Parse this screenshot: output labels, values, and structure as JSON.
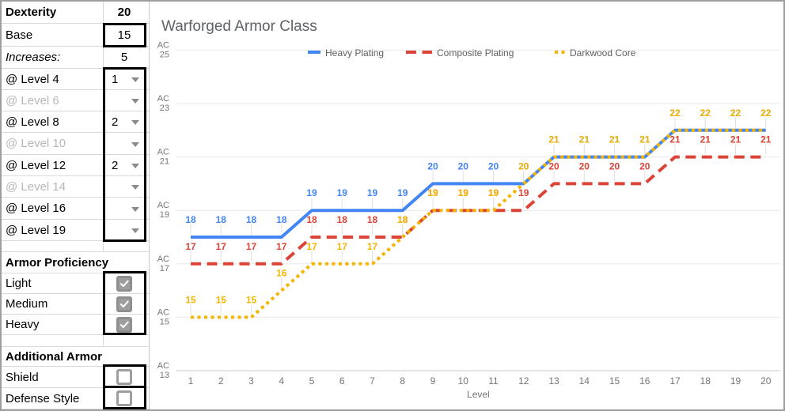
{
  "colors": {
    "series_blue": "#4285f4",
    "series_red": "#db4437",
    "series_yellow": "#f4b400",
    "title_text": "#5f6368",
    "axis_text": "#757575",
    "gridline": "#e8e8e8",
    "axis_baseline": "#c9c9c9",
    "checkbox_gray": "#9e9e9e",
    "muted_label": "#b7b7b7"
  },
  "icons": {
    "dropdown": "triangle-down-icon",
    "checked": "checkmark-icon"
  },
  "sidebar": {
    "stats": [
      {
        "label": "Dexterity",
        "value": "20"
      },
      {
        "label": "Base",
        "value": "15"
      },
      {
        "label": "Increases:",
        "value": "5"
      }
    ],
    "level_rows": [
      {
        "label": "@ Level 4",
        "value": "1",
        "muted": false
      },
      {
        "label": "@ Level 6",
        "value": "",
        "muted": true
      },
      {
        "label": "@ Level 8",
        "value": "2",
        "muted": false
      },
      {
        "label": "@ Level 10",
        "value": "",
        "muted": true
      },
      {
        "label": "@ Level 12",
        "value": "2",
        "muted": false
      },
      {
        "label": "@ Level 14",
        "value": "",
        "muted": true
      },
      {
        "label": "@ Level 16",
        "value": "",
        "muted": false
      },
      {
        "label": "@ Level 19",
        "value": "",
        "muted": false
      }
    ],
    "armor_proficiency": {
      "header": "Armor Proficiency",
      "items": [
        {
          "label": "Light",
          "checked": true
        },
        {
          "label": "Medium",
          "checked": true
        },
        {
          "label": "Heavy",
          "checked": true
        }
      ]
    },
    "additional_armor": {
      "header": "Additional Armor",
      "items": [
        {
          "label": "Shield",
          "checked": false
        },
        {
          "label": "Defense Style",
          "checked": false
        }
      ]
    }
  },
  "chart_data": {
    "type": "line",
    "title": "Warforged Armor Class",
    "xlabel": "Level",
    "ylabel": "AC",
    "x": [
      1,
      2,
      3,
      4,
      5,
      6,
      7,
      8,
      9,
      10,
      11,
      12,
      13,
      14,
      15,
      16,
      17,
      18,
      19,
      20
    ],
    "y_ticks": [
      13,
      15,
      17,
      19,
      21,
      23,
      25
    ],
    "ylim": [
      13,
      25
    ],
    "grid": true,
    "legend_position": "top",
    "y_tick_prefix": "AC",
    "series": [
      {
        "name": "Heavy Plating",
        "color": "#4285f4",
        "dash": "solid",
        "values": [
          18,
          18,
          18,
          18,
          19,
          19,
          19,
          19,
          20,
          20,
          20,
          20,
          21,
          21,
          21,
          21,
          22,
          22,
          22,
          22
        ]
      },
      {
        "name": "Composite Plating",
        "color": "#db4437",
        "dash": "dashed",
        "values": [
          17,
          17,
          17,
          17,
          18,
          18,
          18,
          18,
          19,
          19,
          19,
          19,
          20,
          20,
          20,
          20,
          21,
          21,
          21,
          21
        ]
      },
      {
        "name": "Darkwood Core",
        "color": "#f4b400",
        "dash": "dotted",
        "values": [
          15,
          15,
          15,
          16,
          17,
          17,
          17,
          18,
          19,
          19,
          19,
          20,
          21,
          21,
          21,
          21,
          22,
          22,
          22,
          22
        ]
      }
    ]
  }
}
